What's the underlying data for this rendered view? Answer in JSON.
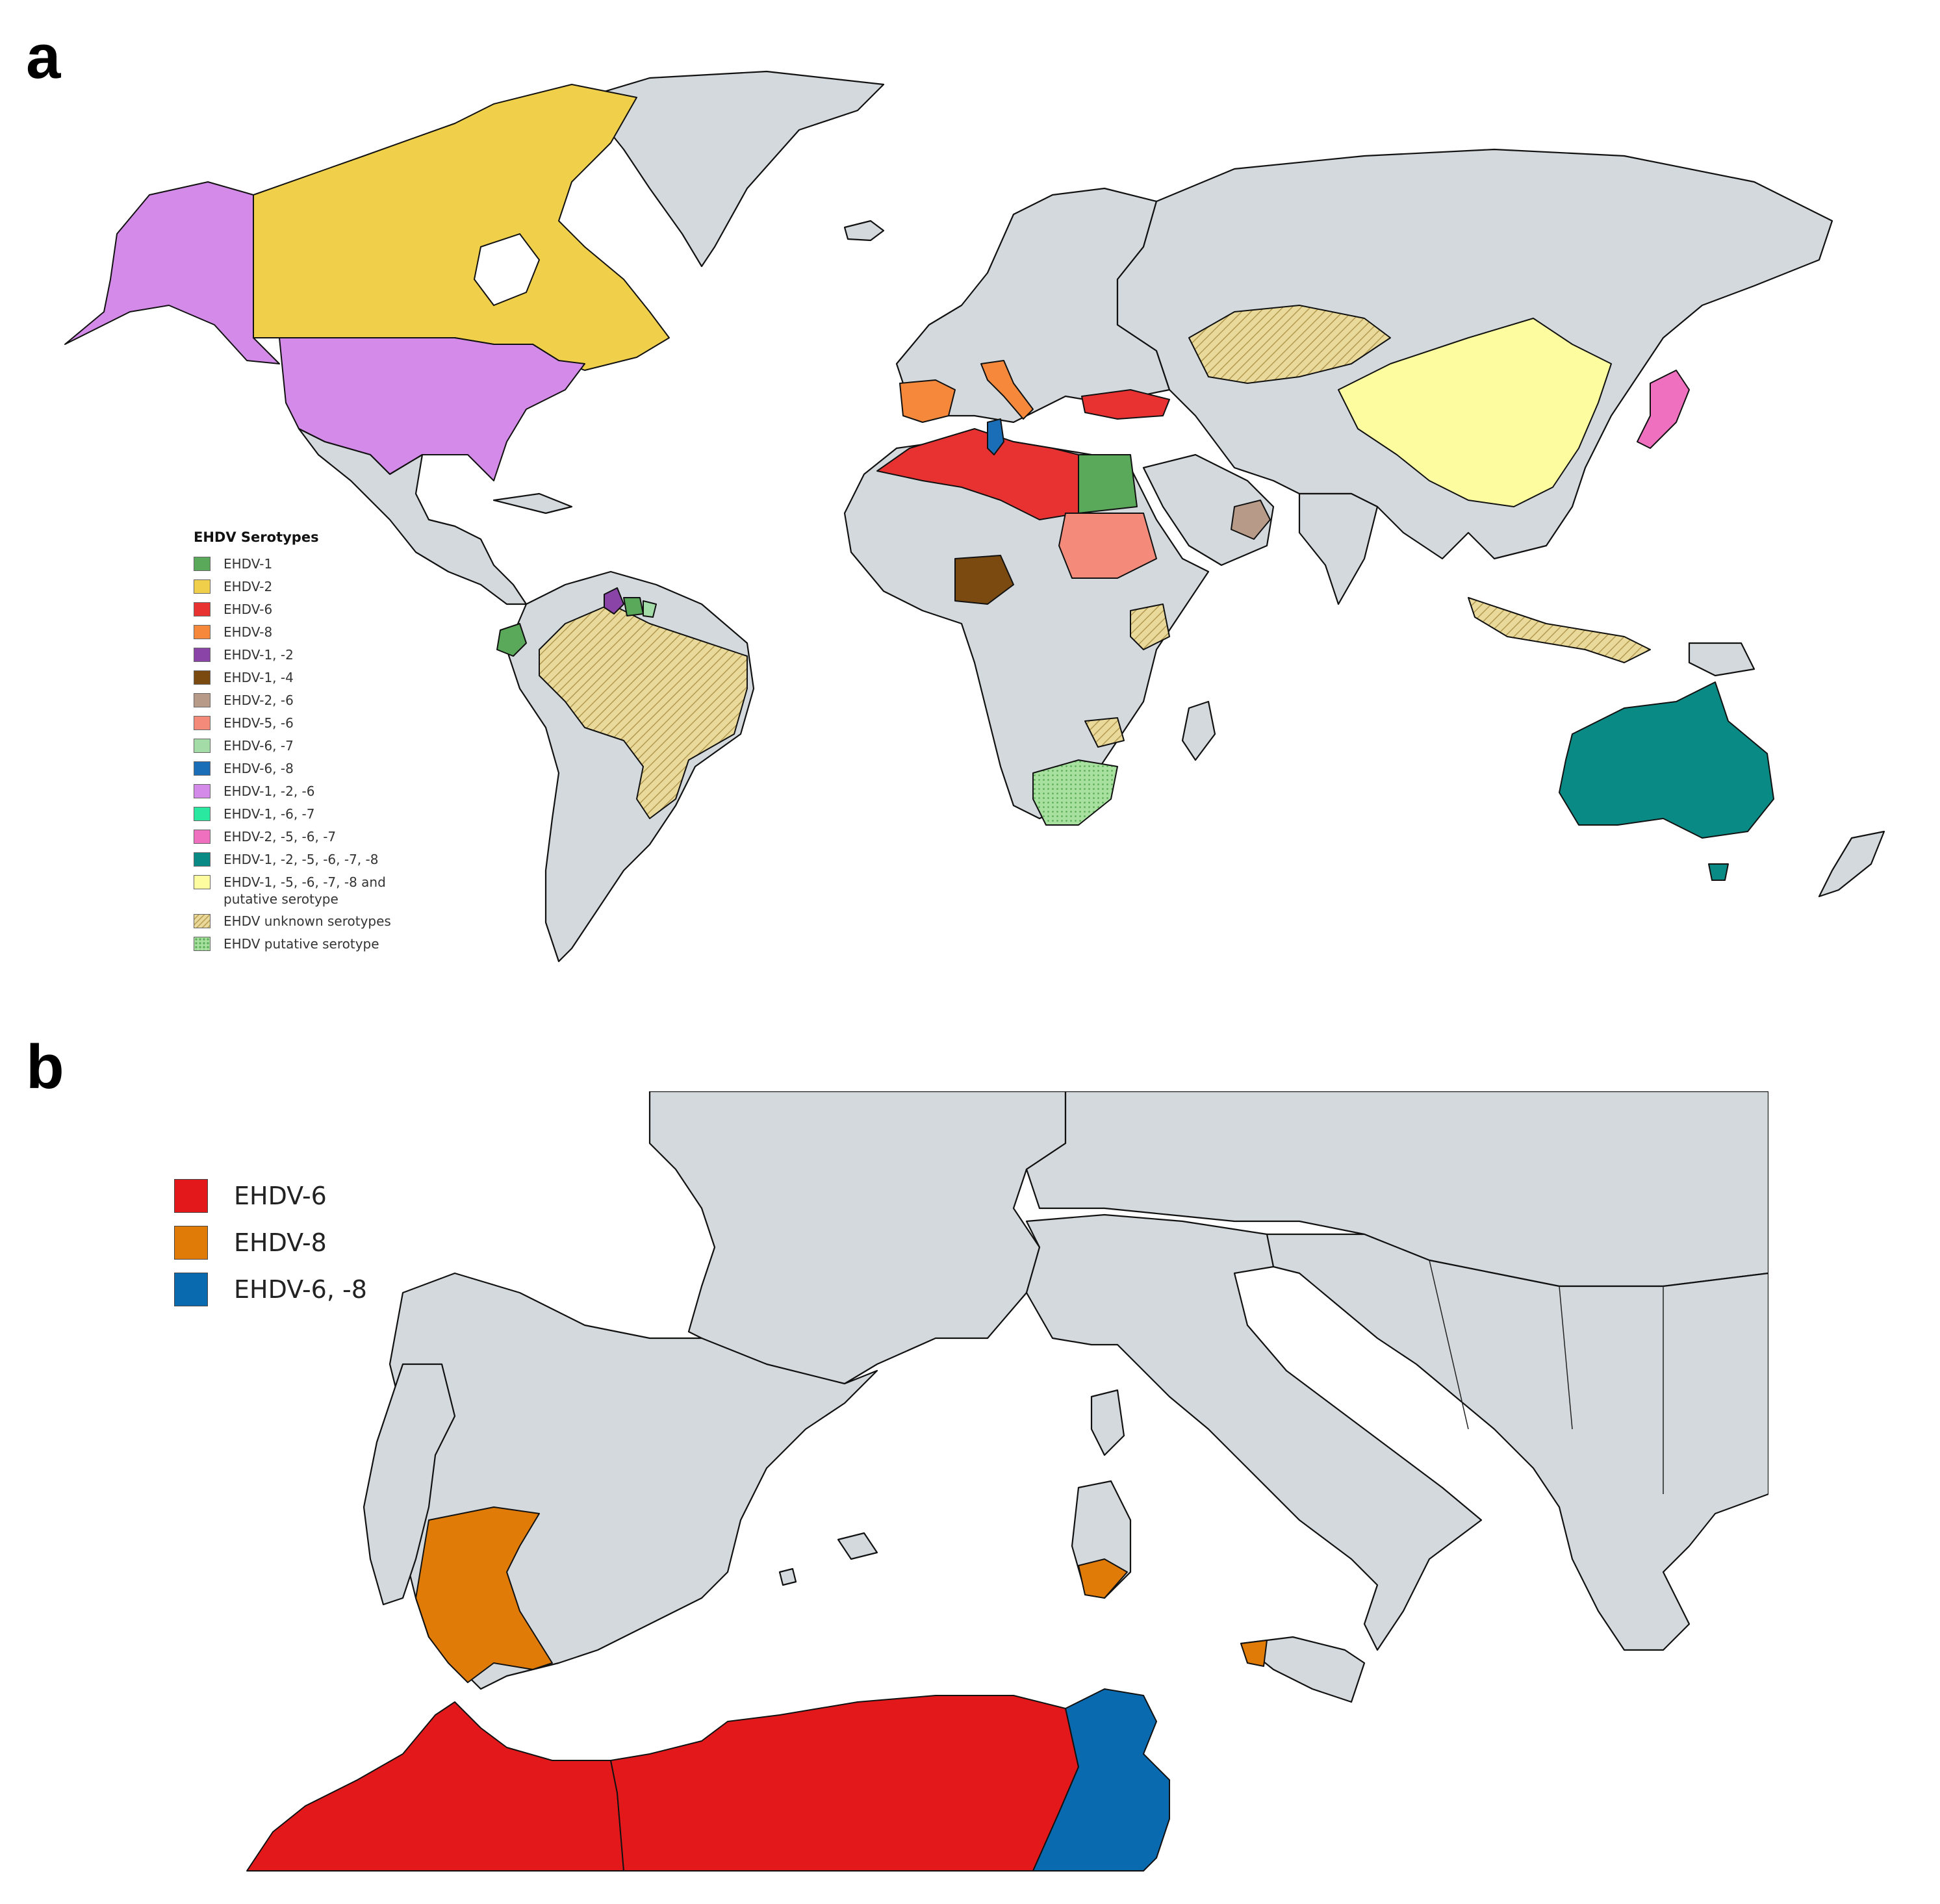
{
  "panels": {
    "a": {
      "label": "a"
    },
    "b": {
      "label": "b"
    }
  },
  "legend_a": {
    "title": "EHDV Serotypes",
    "items": [
      {
        "label": "EHDV-1",
        "color": "#5aa85a",
        "pattern": "solid"
      },
      {
        "label": "EHDV-2",
        "color": "#f0d04a",
        "pattern": "solid"
      },
      {
        "label": "EHDV-6",
        "color": "#e83232",
        "pattern": "solid"
      },
      {
        "label": "EHDV-8",
        "color": "#f5883a",
        "pattern": "solid"
      },
      {
        "label": "EHDV-1, -2",
        "color": "#8a44a8",
        "pattern": "solid"
      },
      {
        "label": "EHDV-1, -4",
        "color": "#7a4a10",
        "pattern": "solid"
      },
      {
        "label": "EHDV-2, -6",
        "color": "#b89a88",
        "pattern": "solid"
      },
      {
        "label": "EHDV-5, -6",
        "color": "#f48a7a",
        "pattern": "solid"
      },
      {
        "label": "EHDV-6, -7",
        "color": "#a4dca8",
        "pattern": "solid"
      },
      {
        "label": "EHDV-6, -8",
        "color": "#1a6eb8",
        "pattern": "solid"
      },
      {
        "label": "EHDV-1, -2, -6",
        "color": "#d48ae8",
        "pattern": "solid"
      },
      {
        "label": "EHDV-1, -6, -7",
        "color": "#2ae8a0",
        "pattern": "solid"
      },
      {
        "label": "EHDV-2, -5, -6, -7",
        "color": "#f070c0",
        "pattern": "solid"
      },
      {
        "label": "EHDV-1, -2, -5, -6, -7, -8",
        "color": "#0a8a84",
        "pattern": "solid"
      },
      {
        "label": "EHDV-1, -5, -6, -7, -8 and putative serotype",
        "color": "#fdfda0",
        "pattern": "solid"
      },
      {
        "label": "EHDV unknown serotypes",
        "color": "#e9d99a",
        "pattern": "hatch"
      },
      {
        "label": "EHDV putative serotype",
        "color": "#a8e0a0",
        "pattern": "dots"
      }
    ]
  },
  "legend_b": {
    "items": [
      {
        "label": "EHDV-6",
        "color": "#e3181b"
      },
      {
        "label": "EHDV-8",
        "color": "#e07b08"
      },
      {
        "label": "EHDV-6, -8",
        "color": "#0a6ab0"
      }
    ]
  },
  "colors": {
    "land": "#d3d9dc",
    "ocean": "#ffffff",
    "border": "#111111"
  }
}
